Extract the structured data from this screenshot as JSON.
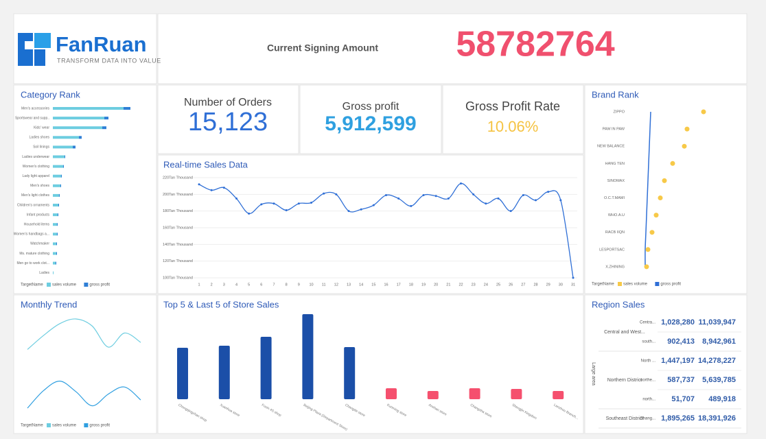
{
  "header": {
    "logo": "FanRuan",
    "slogan": "TRANSFORM DATA INTO VALUE",
    "label": "Current Signing Amount",
    "value": "58782764"
  },
  "kpis": [
    {
      "label": "Number of Orders",
      "value": "15,123"
    },
    {
      "label": "Gross profit",
      "value": "5,912,599"
    },
    {
      "label": "Gross Profit Rate",
      "value": "10.06%"
    }
  ],
  "chart_data": [
    {
      "type": "bar",
      "title": "Category Rank",
      "legend_title": "TargetName",
      "categories": [
        "Men's accessories",
        "Sportswear and supp..",
        "Kids' wear",
        "Ladies shoes",
        "Soil linings",
        "Ladies underwear",
        "Women's clothing",
        "Lady light apparel",
        "Men's shoes",
        "Men's light clothes",
        "Children's ornaments",
        "Infant products",
        "Household items",
        "Women's handbags a...",
        "Watchmaker",
        "Ms. mature clothing",
        "Men go to work clot...",
        "Ladies"
      ],
      "series": [
        {
          "name": "sales volume",
          "color": "#6dcde0",
          "values": [
            103,
            75,
            72,
            38,
            29,
            17,
            15,
            12,
            11,
            9,
            8,
            7,
            6,
            6,
            5,
            5,
            4,
            1
          ]
        },
        {
          "name": "gross profit",
          "color": "#2f7fd6",
          "values": [
            10,
            6,
            6,
            4,
            4,
            1,
            1,
            1,
            1,
            1,
            1,
            1,
            1,
            1,
            1,
            1,
            1,
            0
          ]
        }
      ]
    },
    {
      "type": "dot",
      "title": "Brand Rank",
      "legend_title": "TargetName",
      "categories": [
        "ZIPPO",
        "PAW IN PAW",
        "NEW BALANCE",
        "HANG TEN",
        "SINOMAX",
        "O.C.T.MAMI",
        "WHO.A.U",
        "RACB IIQN",
        "LESPORTSAC",
        "X.ZHINING"
      ],
      "series": [
        {
          "name": "sales volume",
          "color": "#f7c948",
          "values": [
            90,
            66,
            62,
            45,
            33,
            27,
            21,
            15,
            9,
            7
          ]
        },
        {
          "name": "gross profit",
          "color": "#2f6fd6",
          "values": [
            13,
            12,
            11,
            10,
            9,
            8,
            7,
            6,
            5,
            5
          ]
        }
      ]
    },
    {
      "type": "line",
      "title": "Real-time Sales Data",
      "categories": [
        "1",
        "2",
        "3",
        "4",
        "5",
        "6",
        "7",
        "8",
        "9",
        "10",
        "11",
        "12",
        "13",
        "14",
        "15",
        "16",
        "17",
        "18",
        "19",
        "20",
        "21",
        "22",
        "23",
        "24",
        "25",
        "26",
        "27",
        "28",
        "29",
        "30",
        "31"
      ],
      "series": [
        {
          "name": "sales",
          "color": "#2f6fd6",
          "values": [
            212,
            205,
            208,
            195,
            177,
            188,
            189,
            181,
            189,
            190,
            201,
            200,
            180,
            182,
            187,
            199,
            195,
            186,
            199,
            198,
            195,
            213,
            200,
            189,
            195,
            180,
            199,
            193,
            203,
            193,
            100
          ]
        }
      ],
      "ylim": [
        100,
        220
      ],
      "yticks": [
        {
          "value": 100,
          "label": "100Tan Thousand"
        },
        {
          "value": 120,
          "label": "120Tan Thousand"
        },
        {
          "value": 140,
          "label": "140Tan Thousand"
        },
        {
          "value": 160,
          "label": "160Tan Thousand"
        },
        {
          "value": 180,
          "label": "180Tan Thousand"
        },
        {
          "value": 200,
          "label": "200Tan Thousand"
        },
        {
          "value": 220,
          "label": "220Tan Thousand"
        }
      ],
      "grid": true
    },
    {
      "type": "spline",
      "title": "Monthly Trend",
      "legend_title": "TargetName",
      "series": [
        {
          "name": "sales volume",
          "color": "#6dcde0",
          "values": [
            60,
            72,
            82,
            86,
            80,
            62,
            74,
            66
          ]
        },
        {
          "name": "gross profit",
          "color": "#2f9fe0",
          "values": [
            10,
            25,
            33,
            24,
            12,
            22,
            28,
            17
          ]
        }
      ]
    },
    {
      "type": "column",
      "title": "Top 5 & Last 5 of Store Sales",
      "categories": [
        "Chongqingzhan shop",
        "Xuanhua store",
        "Fuxin 4S shop",
        "Beijing Plaza (Department Store)",
        "Changde store",
        "Kunming store",
        "Anshan store",
        "Changsha store",
        "Shengjin Kingdom",
        "Lanzhou Branch..."
      ],
      "values": [
        75,
        78,
        91,
        124,
        76,
        16,
        12,
        16,
        15,
        12
      ],
      "colors": [
        "#1b4fa8",
        "#1b4fa8",
        "#1b4fa8",
        "#1b4fa8",
        "#1b4fa8",
        "#f5506e",
        "#f5506e",
        "#f5506e",
        "#f5506e",
        "#f5506e"
      ]
    }
  ],
  "region_sales": {
    "title": "Region Sales",
    "header": "Large area",
    "groups": [
      {
        "name": "Central and West...",
        "rows": [
          [
            "Centra...",
            "1,028,280",
            "11,039,947"
          ],
          [
            "south...",
            "902,413",
            "8,942,961"
          ]
        ]
      },
      {
        "name": "Northern District",
        "rows": [
          [
            "North ...",
            "1,447,197",
            "14,278,227"
          ],
          [
            "northe...",
            "587,737",
            "5,639,785"
          ],
          [
            "north...",
            "51,707",
            "489,918"
          ]
        ]
      },
      {
        "name": "Southeast District",
        "rows": [
          [
            "Shang...",
            "1,895,265",
            "18,391,926"
          ]
        ]
      }
    ]
  }
}
